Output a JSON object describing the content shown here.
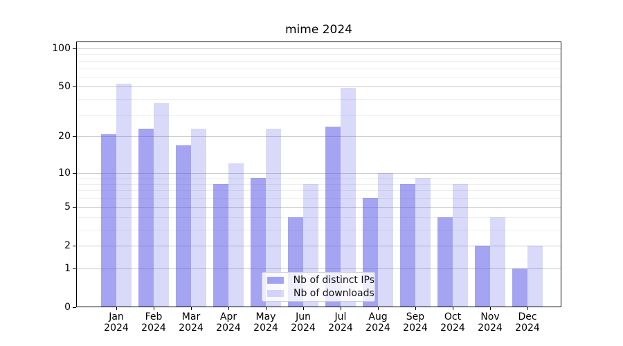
{
  "chart_data": {
    "type": "bar",
    "title": "mime 2024",
    "categories": [
      "Jan",
      "Feb",
      "Mar",
      "Apr",
      "May",
      "Jun",
      "Jul",
      "Aug",
      "Sep",
      "Oct",
      "Nov",
      "Dec"
    ],
    "category_year": "2024",
    "series": [
      {
        "name": "Nb of distinct IPs",
        "color": "rgba(80,80,230,0.52)",
        "values": [
          21,
          23,
          17,
          8,
          9,
          4,
          24,
          6,
          8,
          4,
          2,
          1
        ]
      },
      {
        "name": "Nb of downloads",
        "color": "rgba(80,80,230,0.22)",
        "values": [
          53,
          37,
          23,
          12,
          23,
          8,
          49,
          10,
          9,
          8,
          4,
          2
        ]
      }
    ],
    "y_axis": {
      "scale": "log10(value+1)",
      "tick_labels": [
        "100",
        "50",
        "20",
        "10",
        "5",
        "2",
        "1",
        "0"
      ],
      "major_ticks": [
        100,
        50,
        20,
        10,
        5,
        2,
        1,
        0
      ],
      "minor_gridlines": [
        3,
        4,
        6,
        7,
        8,
        9,
        30,
        40,
        60,
        70,
        80,
        90
      ],
      "ylim": [
        0,
        113
      ]
    },
    "xlabel": "",
    "ylabel": "",
    "grid": true,
    "legend_position": "lower center"
  },
  "colors": {
    "bar_base": "#5050e6",
    "major_grid": "#c8c8c8",
    "minor_grid": "#ededed",
    "spine": "#000000",
    "background": "#ffffff"
  }
}
